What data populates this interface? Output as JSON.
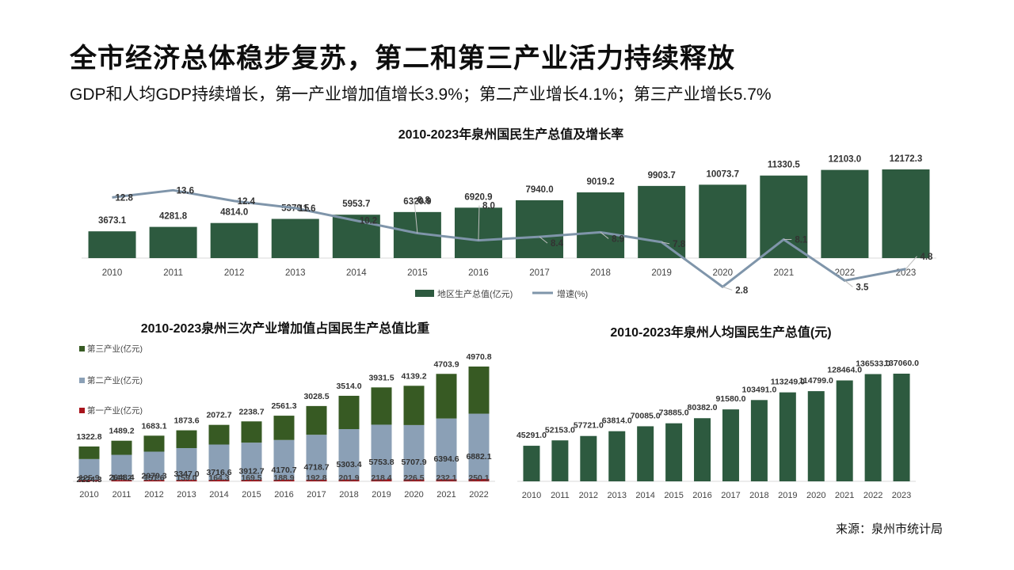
{
  "page": {
    "title": "全市经济总体稳步复苏，第二和第三产业活力持续释放",
    "subtitle": "GDP和人均GDP持续增长，第一产业增加值增长3.9%；第二产业增长4.1%；第三产业增长5.7%",
    "source": "来源：泉州市统计局"
  },
  "colors": {
    "dark_green": "#2b5340",
    "primary_green": "#2d5a3f",
    "tertiary_green": "#375a23",
    "secondary_blue": "#8ba0b6",
    "primary_red": "#a8141c",
    "line_gray": "#7f95aa"
  },
  "chart_data": [
    {
      "id": "gdp",
      "type": "bar+line",
      "title": "2010-2023年泉州国民生产总值及增长率",
      "categories": [
        "2010",
        "2011",
        "2012",
        "2013",
        "2014",
        "2015",
        "2016",
        "2017",
        "2018",
        "2019",
        "2020",
        "2021",
        "2022",
        "2023"
      ],
      "series": [
        {
          "name": "地区生产总值(亿元)",
          "type": "bar",
          "values": [
            3673.1,
            4281.8,
            4814.0,
            5379.5,
            5953.7,
            6320.9,
            6920.9,
            7940.0,
            9019.2,
            9903.7,
            10073.7,
            11330.5,
            12103.0,
            12172.3
          ],
          "labels": [
            "3673.1",
            "4281.8",
            "4814.0",
            "5379.5",
            "5953.7",
            "6320.9",
            "6920.9",
            "7940.0",
            "9019.2",
            "9903.7",
            "10073.7",
            "11330.5",
            "12103.0",
            "12172.3"
          ]
        },
        {
          "name": "增速(%)",
          "type": "line",
          "values": [
            12.8,
            13.6,
            12.4,
            11.6,
            10.2,
            8.8,
            8.0,
            8.4,
            8.9,
            7.8,
            2.8,
            8.1,
            3.5,
            4.8
          ],
          "labels": [
            "12.8",
            "13.6",
            "12.4",
            "11.6",
            "10.2",
            "8.8",
            "8.0",
            "8.4",
            "8.9",
            "7.8",
            "2.8",
            "8.1",
            "3.5",
            "4.8"
          ]
        }
      ],
      "legend": "bottom"
    },
    {
      "id": "industry",
      "type": "stacked-bar",
      "title": "2010-2023泉州三次产业增加值占国民生产总值比重",
      "categories": [
        "2010",
        "2011",
        "2012",
        "2013",
        "2014",
        "2015",
        "2016",
        "2017",
        "2018",
        "2019",
        "2020",
        "2021",
        "2022"
      ],
      "series": [
        {
          "name": "第一产业(亿元)",
          "values": [
            125.9,
            144.2,
            151.6,
            159.0,
            164.3,
            169.5,
            188.9,
            192.8,
            201.9,
            218.4,
            226.5,
            232.1,
            250.1
          ],
          "labels": [
            "125.9",
            "144.2",
            "151.6",
            "159.0",
            "164.3",
            "169.5",
            "188.9",
            "192.8",
            "201.9",
            "218.4",
            "226.5",
            "232.1",
            "250.1"
          ]
        },
        {
          "name": "第二产业(亿元)",
          "values": [
            2224.3,
            2648.4,
            2979.3,
            3347.0,
            3716.6,
            3912.7,
            4170.7,
            4718.7,
            5303.4,
            5753.8,
            5707.9,
            6394.6,
            6882.1
          ],
          "labels": [
            "2224.3",
            "2648.4",
            "2979.3",
            "3347.0",
            "3716.6",
            "3912.7",
            "4170.7",
            "4718.7",
            "5303.4",
            "5753.8",
            "5707.9",
            "6394.6",
            "6882.1"
          ]
        },
        {
          "name": "第三产业(亿元)",
          "values": [
            1322.8,
            1489.2,
            1683.1,
            1873.6,
            2072.7,
            2238.7,
            2561.3,
            3028.5,
            3514.0,
            3931.5,
            4139.2,
            4703.9,
            4970.8
          ],
          "labels": [
            "1322.8",
            "1489.2",
            "1683.1",
            "1873.6",
            "2072.7",
            "2238.7",
            "2561.3",
            "3028.5",
            "3514.0",
            "3931.5",
            "4139.2",
            "4703.9",
            "4970.8"
          ]
        }
      ],
      "legend": "top-left"
    },
    {
      "id": "percapita",
      "type": "bar",
      "title": "2010-2023年泉州人均国民生产总值(元)",
      "categories": [
        "2010",
        "2011",
        "2012",
        "2013",
        "2014",
        "2015",
        "2016",
        "2017",
        "2018",
        "2019",
        "2020",
        "2021",
        "2022",
        "2023"
      ],
      "values": [
        45291.0,
        52153.0,
        57721.0,
        63814.0,
        70085.0,
        73885.0,
        80382.0,
        91580.0,
        103491.0,
        113249.0,
        114799.0,
        128464.0,
        136533.0,
        137060.0
      ],
      "labels": [
        "45291.0",
        "52153.0",
        "57721.0",
        "63814.0",
        "70085.0",
        "73885.0",
        "80382.0",
        "91580.0",
        "103491.0",
        "113249.0",
        "114799.0",
        "128464.0",
        "136533.0",
        "137060.0"
      ]
    }
  ]
}
